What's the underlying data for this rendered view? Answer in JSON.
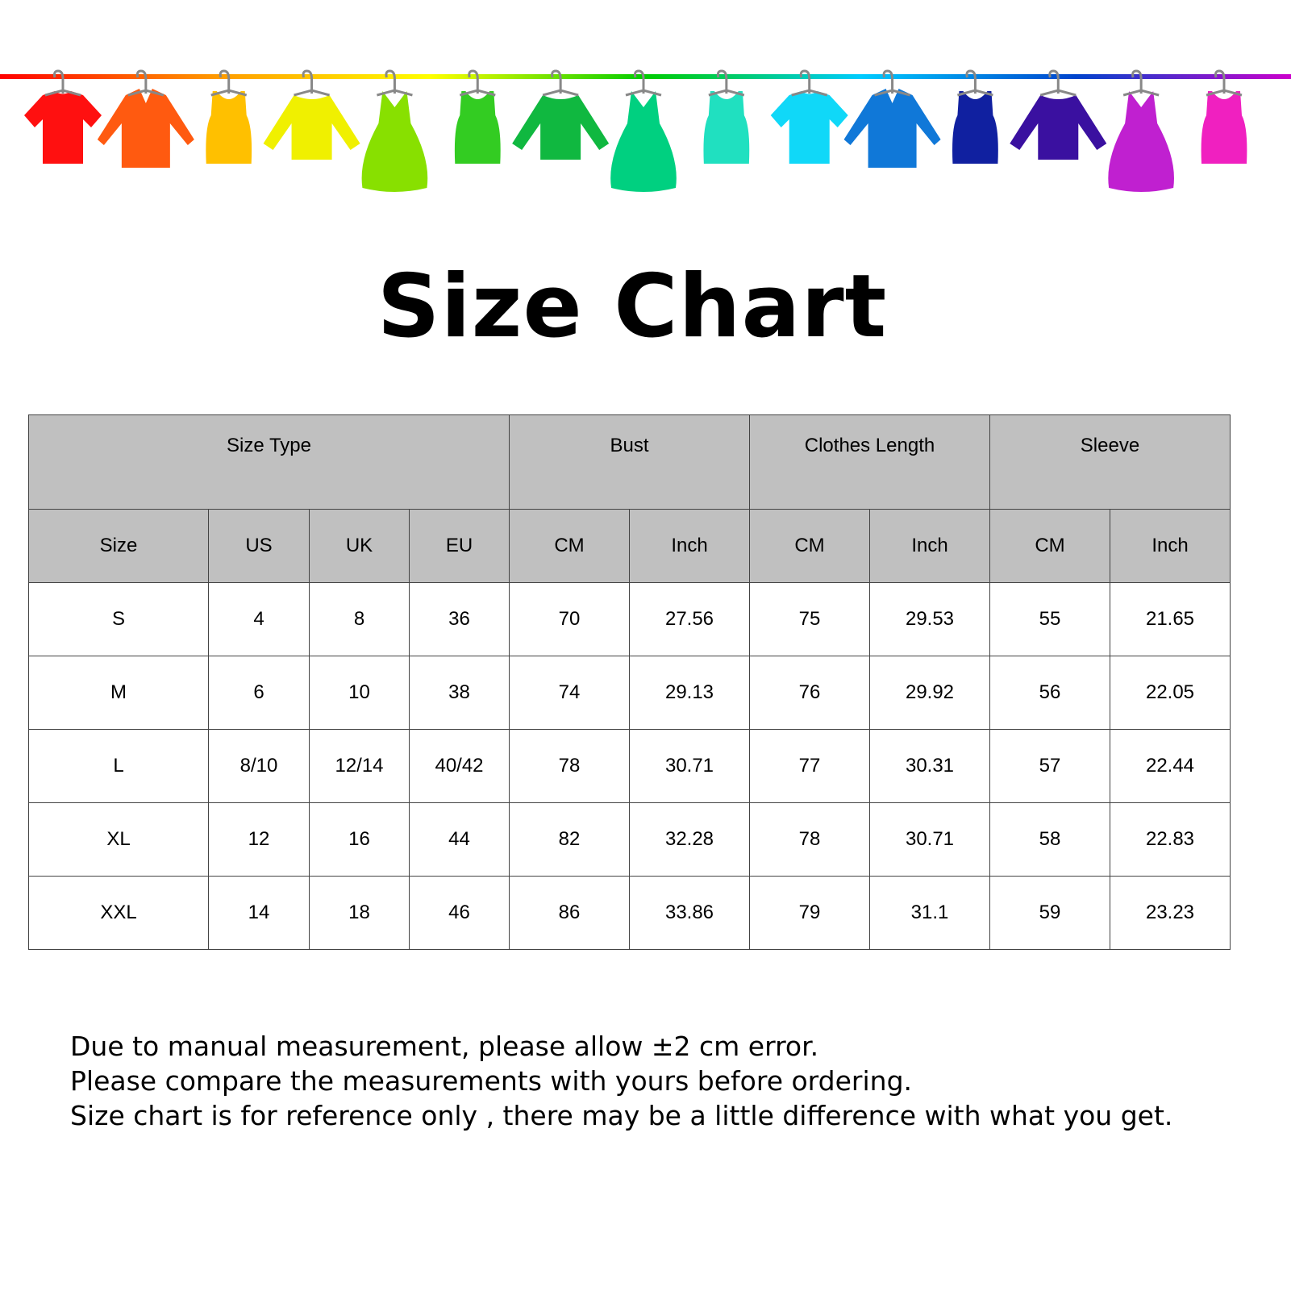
{
  "banner": {
    "line_colors": [
      "#ff0000",
      "#ff9900",
      "#ffff00",
      "#00cc00",
      "#00ccff",
      "#0044cc",
      "#cc00cc"
    ],
    "garments": [
      {
        "type": "tshirt",
        "color": "#ff1010"
      },
      {
        "type": "shirt",
        "color": "#ff5a10"
      },
      {
        "type": "tank",
        "color": "#ffc000"
      },
      {
        "type": "sweater",
        "color": "#f0f000"
      },
      {
        "type": "dress",
        "color": "#88e000"
      },
      {
        "type": "tank",
        "color": "#33cc22"
      },
      {
        "type": "sweater",
        "color": "#10b840"
      },
      {
        "type": "dress",
        "color": "#00d080"
      },
      {
        "type": "tank",
        "color": "#20e0c0"
      },
      {
        "type": "tshirt",
        "color": "#10d8f8"
      },
      {
        "type": "shirt",
        "color": "#1078d8"
      },
      {
        "type": "tank",
        "color": "#1020a0"
      },
      {
        "type": "sweater",
        "color": "#3a10a0"
      },
      {
        "type": "dress",
        "color": "#c020d0"
      },
      {
        "type": "tank",
        "color": "#f020c0"
      }
    ]
  },
  "title": "Size Chart",
  "table": {
    "groups": [
      "Size Type",
      "Bust",
      "Clothes Length",
      "Sleeve"
    ],
    "columns": [
      "Size",
      "US",
      "UK",
      "EU",
      "CM",
      "Inch",
      "CM",
      "Inch",
      "CM",
      "Inch"
    ],
    "rows": [
      [
        "S",
        "4",
        "8",
        "36",
        "70",
        "27.56",
        "75",
        "29.53",
        "55",
        "21.65"
      ],
      [
        "M",
        "6",
        "10",
        "38",
        "74",
        "29.13",
        "76",
        "29.92",
        "56",
        "22.05"
      ],
      [
        "L",
        "8/10",
        "12/14",
        "40/42",
        "78",
        "30.71",
        "77",
        "30.31",
        "57",
        "22.44"
      ],
      [
        "XL",
        "12",
        "16",
        "44",
        "82",
        "32.28",
        "78",
        "30.71",
        "58",
        "22.83"
      ],
      [
        "XXL",
        "14",
        "18",
        "46",
        "86",
        "33.86",
        "79",
        "31.1",
        "59",
        "23.23"
      ]
    ]
  },
  "notes": [
    "Due to manual measurement, please allow ±2 cm error.",
    "Please compare the measurements with yours before ordering.",
    "Size chart is for reference only , there may be a little difference with what you get."
  ]
}
